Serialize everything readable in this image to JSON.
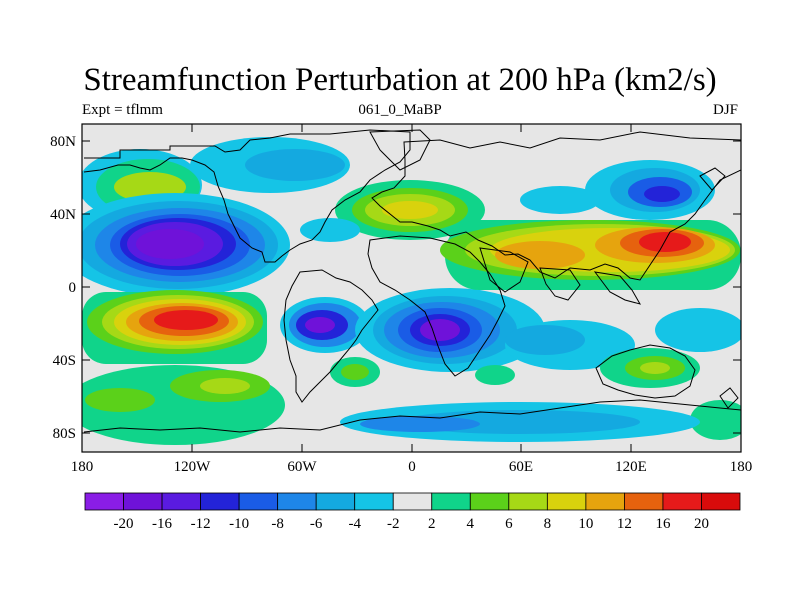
{
  "title": "Streamfunction Perturbation at 200 hPa (km2/s)",
  "subtitle_left": "Expt = tflmm",
  "subtitle_center": "061_0_MaBP",
  "subtitle_right": "DJF",
  "lat_ticks": [
    "80N",
    "40N",
    "0",
    "40S",
    "80S"
  ],
  "lon_ticks": [
    "180",
    "120W",
    "60W",
    "0",
    "60E",
    "120E",
    "180"
  ],
  "colorbar": {
    "labels": [
      "-20",
      "-16",
      "-12",
      "-10",
      "-8",
      "-6",
      "-4",
      "-2",
      "2",
      "4",
      "6",
      "8",
      "10",
      "12",
      "16",
      "20"
    ],
    "colors": [
      "#8a1de6",
      "#6f12d9",
      "#5a1be0",
      "#2323d8",
      "#1a5ce6",
      "#1e86e8",
      "#14a9e0",
      "#15c4e6",
      "#e6e6e6",
      "#10d48a",
      "#5bd11a",
      "#a6d916",
      "#d9d20d",
      "#e6a40e",
      "#e6620e",
      "#e61a1a",
      "#d90b0b"
    ]
  },
  "colors": {
    "land_outline": "#000000",
    "neutral_fill": "#e6e6e6"
  }
}
